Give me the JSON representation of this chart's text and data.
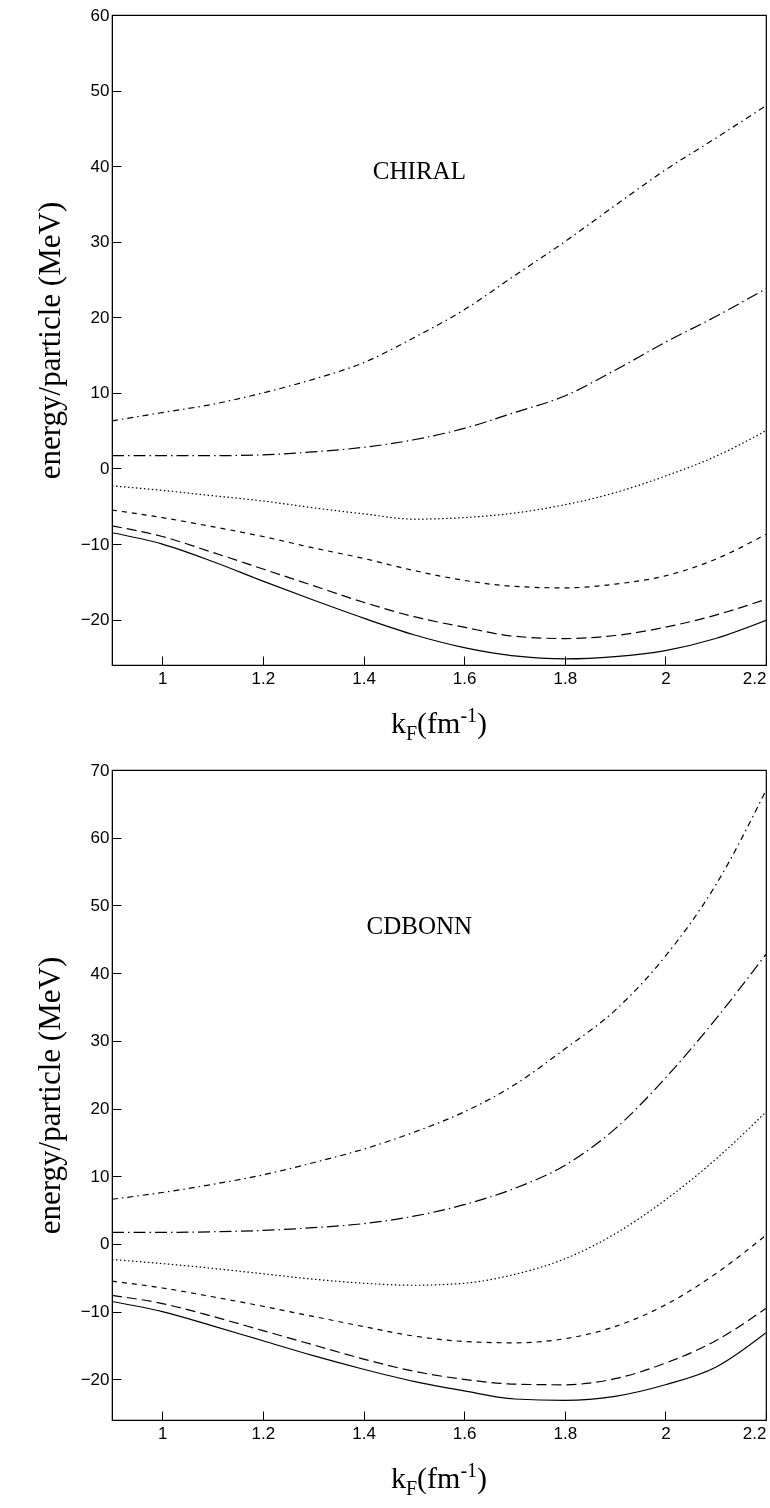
{
  "chart_data": [
    {
      "type": "line",
      "annotations": [
        "CHIRAL"
      ],
      "xlabel": "k$_{F}$(fm$^{-1}$)",
      "ylabel": "energy/particle (MeV)",
      "xlim": [
        0.9,
        2.2
      ],
      "ylim": [
        -26,
        60
      ],
      "xticks": [
        1,
        1.2,
        1.4,
        1.6,
        1.8,
        2,
        2.2
      ],
      "yticks": [
        -20,
        -10,
        0,
        10,
        20,
        30,
        40,
        50,
        60
      ],
      "x": [
        0.9,
        1.0,
        1.1,
        1.2,
        1.3,
        1.4,
        1.5,
        1.6,
        1.7,
        1.8,
        1.9,
        2.0,
        2.1,
        2.2
      ],
      "series": [
        {
          "color": "#000000",
          "line_style": "solid",
          "values": [
            -8.5,
            -10,
            -12.3,
            -14.9,
            -17.4,
            -19.8,
            -22,
            -23.7,
            -24.8,
            -25.2,
            -24.9,
            -24.1,
            -22.5,
            -20.1
          ]
        },
        {
          "color": "#000000",
          "line_style": "dashed",
          "values": [
            -7.6,
            -9.0,
            -11.1,
            -13.3,
            -15.5,
            -17.7,
            -19.6,
            -21.0,
            -22.2,
            -22.5,
            -22.1,
            -21.0,
            -19.4,
            -17.3
          ]
        },
        {
          "color": "#000000",
          "line_style": "shortdashed",
          "values": [
            -5.5,
            -6.5,
            -7.7,
            -9.0,
            -10.5,
            -11.9,
            -13.5,
            -14.8,
            -15.6,
            -15.8,
            -15.3,
            -14.2,
            -12.0,
            -8.7
          ]
        },
        {
          "color": "#000000",
          "line_style": "dotted",
          "values": [
            -2.3,
            -2.9,
            -3.6,
            -4.3,
            -5.2,
            -6.0,
            -6.7,
            -6.5,
            -5.9,
            -4.8,
            -3.2,
            -1.0,
            1.6,
            5.0
          ]
        },
        {
          "color": "#000000",
          "line_style": "longdashdot",
          "values": [
            1.7,
            1.7,
            1.7,
            1.8,
            2.2,
            2.8,
            3.8,
            5.3,
            7.4,
            9.6,
            13.0,
            16.7,
            20.1,
            23.8
          ]
        },
        {
          "color": "#000000",
          "line_style": "dashdot",
          "values": [
            6.3,
            7.4,
            8.5,
            10.0,
            11.8,
            14.0,
            17.3,
            21.0,
            25.5,
            30.0,
            34.8,
            39.5,
            43.7,
            48.0
          ]
        }
      ]
    },
    {
      "type": "line",
      "annotations": [
        "CDBONN"
      ],
      "xlabel": "k$_{F}$(fm$^{-1}$)",
      "ylabel": "energy/particle (MeV)",
      "xlim": [
        0.9,
        2.2
      ],
      "ylim": [
        -26,
        70
      ],
      "xticks": [
        1,
        1.2,
        1.4,
        1.6,
        1.8,
        2,
        2.2
      ],
      "yticks": [
        -20,
        -10,
        0,
        10,
        20,
        30,
        40,
        50,
        60,
        70
      ],
      "x": [
        0.9,
        1.0,
        1.1,
        1.2,
        1.3,
        1.4,
        1.5,
        1.6,
        1.7,
        1.8,
        1.9,
        2.0,
        2.1,
        2.2
      ],
      "series": [
        {
          "color": "#000000",
          "line_style": "solid",
          "values": [
            -8.5,
            -10,
            -12.1,
            -14.3,
            -16.5,
            -18.5,
            -20.3,
            -21.7,
            -22.9,
            -23.1,
            -22.5,
            -20.8,
            -18.2,
            -13.1
          ]
        },
        {
          "color": "#000000",
          "line_style": "dashed",
          "values": [
            -7.6,
            -8.8,
            -10.7,
            -12.8,
            -14.9,
            -17.0,
            -18.8,
            -20.0,
            -20.7,
            -20.8,
            -19.9,
            -17.6,
            -14.3,
            -9.5
          ]
        },
        {
          "color": "#000000",
          "line_style": "shortdashed",
          "values": [
            -5.5,
            -6.5,
            -7.8,
            -9.2,
            -10.7,
            -12.2,
            -13.6,
            -14.4,
            -14.6,
            -14.0,
            -12.2,
            -9.0,
            -4.4,
            1.3
          ]
        },
        {
          "color": "#000000",
          "line_style": "dotted",
          "values": [
            -2.3,
            -2.9,
            -3.6,
            -4.4,
            -5.2,
            -5.8,
            -6.1,
            -5.8,
            -4.5,
            -2.2,
            1.5,
            6.5,
            12.5,
            19.5
          ]
        },
        {
          "color": "#000000",
          "line_style": "longdashdot",
          "values": [
            1.7,
            1.7,
            1.8,
            2.0,
            2.4,
            3.0,
            4.1,
            5.8,
            8.2,
            11.6,
            17.0,
            24.5,
            33.2,
            42.8
          ]
        },
        {
          "color": "#000000",
          "line_style": "dashdot",
          "values": [
            6.6,
            7.6,
            8.8,
            10.2,
            12.0,
            14.0,
            16.5,
            19.5,
            23.5,
            28.8,
            34.5,
            42.5,
            53.0,
            67.0
          ]
        }
      ]
    }
  ]
}
